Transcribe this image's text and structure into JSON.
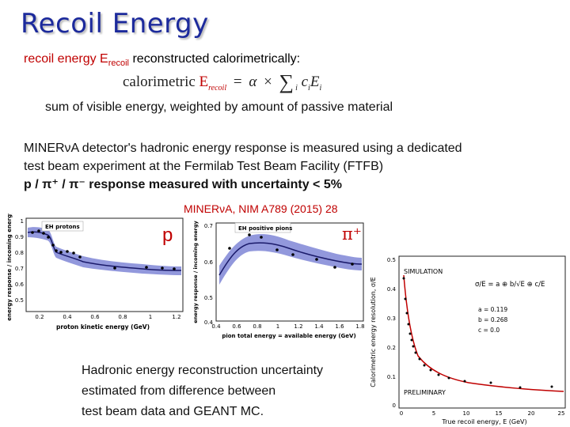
{
  "title": "Recoil Energy",
  "intro": {
    "a": "recoil energy E",
    "sub": "recoil",
    "b": " reconstructed calorimetrically:"
  },
  "formula": {
    "word": "calorimetric",
    "e": "E",
    "e_sub": "recoil",
    "eq": "=",
    "alpha": "α",
    "times": "×",
    "sigma": "∑",
    "i1": "i",
    "c": "c",
    "ci": "i",
    "e2": "E",
    "ei": "i"
  },
  "sum_text": "sum of visible energy, weighted by amount of passive material",
  "paragraph": {
    "line1": "MINERνA detector's hadronic energy response is measured using a dedicated",
    "line2": "test beam experiment at the Fermilab Test Beam Facility (FTFB)",
    "line3": "p / π⁺ / π⁻ response measured with uncertainty < 5%"
  },
  "citation": "MINERνA, NIM A789 (2015) 28",
  "labels": {
    "p": "p",
    "piplus": "π⁺"
  },
  "plot_protons": {
    "inset": "EH protons",
    "ylabel": "energy response / incoming energy",
    "xlabel": "proton kinetic energy (GeV)",
    "yticks": [
      "1",
      "0.9",
      "0.8",
      "0.7",
      "0.6",
      "0.5"
    ],
    "xticks": [
      "0.2",
      "0.4",
      "0.6",
      "0.8",
      "1",
      "1.2"
    ]
  },
  "plot_pions": {
    "inset": "EH positive pions",
    "ylabel": "energy response / incoming energy",
    "xlabel": "pion total energy = available energy (GeV)",
    "yticks": [
      "0.7",
      "0.6",
      "0.5",
      "0.4"
    ],
    "xticks": [
      "0.4",
      "0.6",
      "0.8",
      "1",
      "1.2",
      "1.4",
      "1.6",
      "1.8"
    ]
  },
  "plot_resolution": {
    "ylabel": "Calorimetric energy resolution, σ/E",
    "xlabel": "True recoil energy, E (GeV)",
    "sim": "SIMULATION",
    "prelim": "PRELIMINARY",
    "formula": "σ/E = a ⊕ b/√E ⊕ c/E",
    "params": [
      "a = 0.119",
      "b = 0.268",
      "c = 0.0"
    ],
    "yticks": [
      "0.5",
      "0.4",
      "0.3",
      "0.2",
      "0.1",
      "0"
    ],
    "xticks": [
      "0",
      "5",
      "10",
      "15",
      "20",
      "25"
    ]
  },
  "bottom": {
    "line1": "Hadronic energy reconstruction uncertainty",
    "line2": "estimated from difference between",
    "line3": "test beam data and GEANT MC."
  },
  "colors": {
    "title": "#1c2a9c",
    "accent": "#c00000",
    "band": "#7f86d6"
  }
}
